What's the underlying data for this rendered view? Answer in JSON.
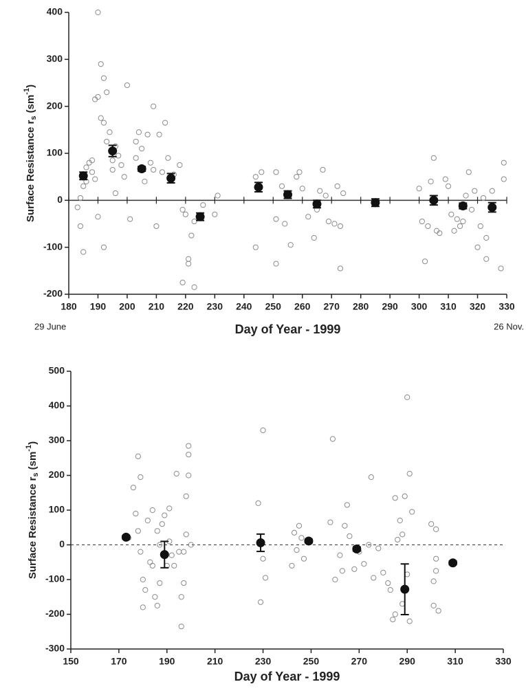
{
  "chart_data": [
    {
      "type": "scatter",
      "x_label": "Day of Year - 1999",
      "y_label": {
        "text": "Surface Resistance r",
        "sub": "s",
        "unit": " (sm",
        "sup": "-1",
        "close": ")"
      },
      "annotations": [
        "29 June",
        "26 Nov."
      ],
      "xlim": [
        180,
        330
      ],
      "ylim": [
        -200,
        400
      ],
      "xticks": [
        180,
        190,
        200,
        210,
        220,
        230,
        240,
        250,
        260,
        270,
        280,
        290,
        300,
        310,
        320,
        330
      ],
      "yticks": [
        -200,
        -100,
        0,
        100,
        200,
        300,
        400
      ],
      "zero_line": "solid",
      "series": [
        {
          "marker": "open-circle",
          "color": "#8a8a8a",
          "x": [
            183,
            184,
            185,
            184,
            185,
            186,
            186,
            187,
            188,
            188,
            189,
            189,
            190,
            190,
            191,
            191,
            192,
            192,
            193,
            193,
            194,
            195,
            195,
            196,
            197,
            198,
            199,
            190,
            192,
            196,
            200,
            201,
            203,
            203,
            204,
            205,
            206,
            207,
            208,
            209,
            209,
            210,
            211,
            212,
            213,
            214,
            216,
            218,
            219,
            219,
            220,
            221,
            221,
            222,
            223,
            223,
            226,
            231,
            230,
            244,
            244,
            246,
            251,
            251,
            251,
            253,
            254,
            256,
            258,
            259,
            260,
            262,
            264,
            265,
            266,
            267,
            268,
            269,
            271,
            272,
            273,
            273,
            274,
            300,
            301,
            302,
            303,
            304,
            305,
            306,
            307,
            309,
            310,
            311,
            312,
            313,
            314,
            315,
            316,
            317,
            318,
            320,
            321,
            322,
            323,
            323,
            325,
            328,
            329,
            329,
            319
          ],
          "values": [
            -15,
            -55,
            -110,
            5,
            30,
            40,
            70,
            80,
            60,
            85,
            45,
            215,
            220,
            400,
            290,
            175,
            165,
            260,
            230,
            125,
            145,
            85,
            65,
            115,
            95,
            75,
            50,
            -35,
            -100,
            15,
            245,
            -40,
            90,
            125,
            145,
            110,
            40,
            140,
            80,
            65,
            200,
            -55,
            140,
            60,
            165,
            90,
            55,
            75,
            -20,
            -175,
            -30,
            -135,
            -125,
            -75,
            -185,
            -45,
            -10,
            10,
            -30,
            -100,
            50,
            60,
            60,
            -40,
            -135,
            30,
            -50,
            -95,
            50,
            60,
            25,
            -35,
            -80,
            -20,
            20,
            65,
            10,
            -45,
            -50,
            30,
            -145,
            -55,
            15,
            25,
            -45,
            -130,
            -55,
            40,
            90,
            -65,
            -70,
            45,
            30,
            -30,
            -65,
            -40,
            -55,
            -45,
            10,
            60,
            -20,
            -100,
            -55,
            5,
            -125,
            -80,
            20,
            -145,
            80,
            45,
            20
          ]
        },
        {
          "marker": "filled-circle",
          "color": "#111111",
          "x": [
            185,
            195,
            205,
            215,
            225,
            245,
            255,
            265,
            285,
            305,
            315,
            325
          ],
          "values": [
            52,
            105,
            67,
            47,
            -35,
            28,
            12,
            -8,
            -5,
            0,
            -12,
            -15
          ],
          "errors": [
            8,
            12,
            5,
            10,
            8,
            10,
            8,
            8,
            8,
            10,
            6,
            10
          ]
        }
      ]
    },
    {
      "type": "scatter",
      "x_label": "Day of Year - 1999",
      "y_label": {
        "text": "Surface Resistance r",
        "sub": "s",
        "unit": " (sm",
        "sup": "-1",
        "close": ")"
      },
      "xlim": [
        150,
        330
      ],
      "ylim": [
        -300,
        500
      ],
      "xticks": [
        150,
        170,
        190,
        210,
        230,
        250,
        270,
        290,
        310,
        330
      ],
      "yticks": [
        -300,
        -200,
        -100,
        0,
        100,
        200,
        300,
        400,
        500
      ],
      "zero_line": "dashed",
      "series": [
        {
          "marker": "open-circle",
          "color": "#8a8a8a",
          "x": [
            176,
            178,
            179,
            177,
            178,
            179,
            180,
            180,
            181,
            182,
            183,
            184,
            184,
            185,
            186,
            186,
            187,
            188,
            189,
            190,
            191,
            191,
            192,
            193,
            194,
            195,
            196,
            196,
            197,
            198,
            199,
            199,
            199,
            198,
            200,
            228,
            229,
            230,
            230,
            231,
            242,
            243,
            244,
            245,
            246,
            247,
            258,
            259,
            260,
            262,
            263,
            264,
            265,
            266,
            268,
            270,
            272,
            274,
            275,
            276,
            278,
            280,
            282,
            283,
            284,
            285,
            285,
            286,
            287,
            288,
            289,
            290,
            290,
            291,
            291,
            292,
            288,
            300,
            301,
            301,
            302,
            302,
            303,
            302,
            174,
            187,
            197
          ],
          "values": [
            165,
            255,
            195,
            90,
            40,
            -20,
            -100,
            -180,
            -130,
            70,
            -50,
            100,
            -60,
            -150,
            -175,
            40,
            -110,
            60,
            85,
            -60,
            10,
            105,
            -30,
            -60,
            205,
            -20,
            -235,
            -150,
            -110,
            140,
            200,
            260,
            285,
            30,
            0,
            120,
            -165,
            330,
            -40,
            -95,
            -60,
            35,
            -15,
            55,
            20,
            -40,
            65,
            305,
            -100,
            -30,
            -75,
            55,
            115,
            25,
            -70,
            -20,
            -55,
            0,
            195,
            -95,
            -10,
            -80,
            -110,
            -130,
            -215,
            -200,
            135,
            15,
            70,
            -170,
            140,
            -85,
            425,
            -220,
            205,
            95,
            30,
            60,
            -175,
            -105,
            -40,
            -75,
            -190,
            45,
            20,
            0,
            -20
          ]
        },
        {
          "marker": "filled-circle",
          "color": "#111111",
          "x": [
            173,
            189,
            229,
            249,
            269,
            289,
            309
          ],
          "values": [
            22,
            -28,
            6,
            11,
            -12,
            -128,
            -52
          ],
          "errors": [
            5,
            38,
            25,
            5,
            6,
            73,
            5
          ]
        }
      ]
    }
  ]
}
